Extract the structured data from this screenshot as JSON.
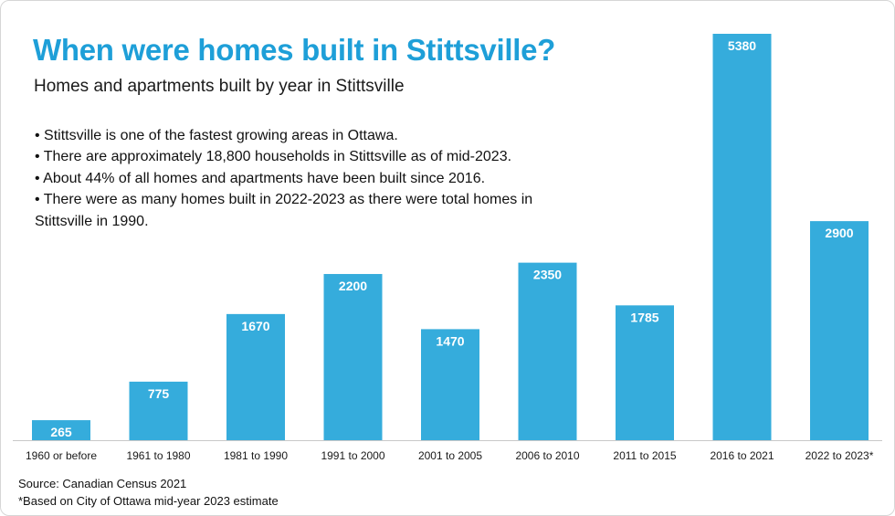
{
  "chart_data": {
    "type": "bar",
    "title": "When were homes built in Stittsville?",
    "subtitle": "Homes and apartments built by year in Stittsville",
    "categories": [
      "1960 or before",
      "1961 to 1980",
      "1981 to 1990",
      "1991 to 2000",
      "2001 to 2005",
      "2006 to 2010",
      "2011 to 2015",
      "2016 to 2021",
      "2022 to 2023*"
    ],
    "values": [
      265,
      775,
      1670,
      2200,
      1470,
      2350,
      1785,
      5380,
      2900
    ],
    "value_labels": [
      "265",
      "775",
      "1670",
      "2200",
      "1470",
      "2350",
      "1785",
      "5380",
      "2900"
    ],
    "xlabel": "",
    "ylabel": "",
    "ylim": [
      0,
      5380
    ],
    "grid": false,
    "bar_color": "#35acdc"
  },
  "bullets": [
    "• Stittsville is one of the fastest growing areas in Ottawa.",
    "• There are approximately 18,800 households in Stittsville as of mid-2023.",
    "• About 44% of all homes and apartments have been built since 2016.",
    "• There were as many homes built in 2022-2023 as there were total homes in Stittsville in 1990."
  ],
  "footer": {
    "source": "Source: Canadian Census 2021",
    "note": "*Based on City of Ottawa mid-year 2023 estimate"
  },
  "colors": {
    "title": "#1e9fd8",
    "bar": "#35acdc"
  }
}
